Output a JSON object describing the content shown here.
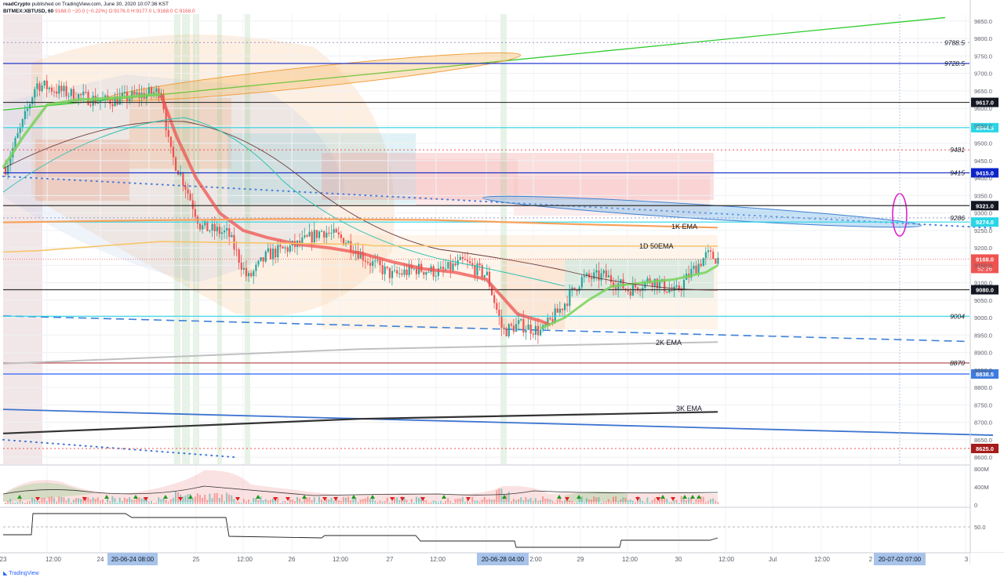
{
  "header": {
    "publisher": "readCrypto",
    "published_info": "published on TradingView.com, June 30, 2020 10:07:36 KST",
    "symbol": "BITMEX:XBTUSD, 60",
    "last": "9168.0",
    "change": "−20.0 (−0.22%)",
    "ohlc": "O:9176.0 H:9177.0 L:9168.0 C:9168.0"
  },
  "watermark": "TradingView",
  "colors": {
    "up": "#26a69a",
    "down": "#ef5350",
    "level_blue": "#0b24c9",
    "level_cyan": "#29d6e6",
    "ema_1k": "#f7a25c",
    "ema_1d50": "#f7c56b",
    "ema_2k": "#c0c0c0",
    "ema_3k": "#333333",
    "highlight_ellipse": "#e020c8"
  },
  "chart_data": {
    "type": "line",
    "title": "",
    "price_axis": {
      "ylim": [
        8580,
        9870
      ],
      "ticks": [
        9850,
        9800,
        9750,
        9700,
        9650,
        9600,
        9550,
        9500,
        9450,
        9400,
        9350,
        9300,
        9250,
        9200,
        9150,
        9100,
        9050,
        9000,
        8950,
        8900,
        8850,
        8800,
        8750,
        8700,
        8650,
        8600
      ],
      "tick_labels": [
        "9850.0",
        "9800.0",
        "9750.0",
        "9700.0",
        "9650.0",
        "9600.0",
        "9550.0",
        "9500.0",
        "9450.0",
        "9400.0",
        "9350.0",
        "9300.0",
        "9250.0",
        "9200.0",
        "9150.0",
        "9100.0",
        "9050.0",
        "9000.0",
        "8950.0",
        "8900.0",
        "8850.0",
        "8800.0",
        "8750.0",
        "8700.0",
        "8650.0",
        "8600.0"
      ]
    },
    "time_axis": {
      "labels": [
        "23",
        "12:00",
        "24",
        "25",
        "12:00",
        "26",
        "12:00",
        "27",
        "12:00",
        "2:00",
        "29",
        "12:00",
        "30",
        "12:00",
        "Jul",
        "12:00",
        "2",
        "3"
      ],
      "highlights": [
        "20-06-24   08:00",
        "20-06-28   04:00",
        "20-07-02   07:00"
      ]
    },
    "levels": [
      {
        "label": "9788.5",
        "value": 9788.5,
        "style": "dotted",
        "color": "#9c9cc9",
        "badge": false
      },
      {
        "label": "9728.5",
        "value": 9728.5,
        "style": "solid",
        "color": "#0b24c9",
        "badge": false
      },
      {
        "label": "9617.0",
        "value": 9617.0,
        "style": "solid",
        "color": "#333333",
        "badge": true,
        "badge_color": "#131722"
      },
      {
        "label": "9544.5",
        "value": 9544.5,
        "style": "solid",
        "color": "#29d6e6",
        "badge": true,
        "badge_color": "#29d6e6"
      },
      {
        "label": "9481",
        "value": 9481,
        "style": "dotted",
        "color": "#ef5350",
        "badge": false
      },
      {
        "label": "9415",
        "value": 9415,
        "style": "solid",
        "color": "#0b24c9",
        "badge": false
      },
      {
        "label": "9415.0",
        "value": 9415,
        "style": "none",
        "color": "#0b24c9",
        "badge": true,
        "badge_color": "#0b24c9"
      },
      {
        "label": "9321.0",
        "value": 9321.0,
        "style": "solid",
        "color": "#333333",
        "badge": true,
        "badge_color": "#131722"
      },
      {
        "label": "9286",
        "value": 9286,
        "style": "dotted",
        "color": "#9c9cc9",
        "badge": false
      },
      {
        "label": "9274.0",
        "value": 9274.0,
        "style": "solid",
        "color": "#29d6e6",
        "badge": true,
        "badge_color": "#29d6e6"
      },
      {
        "label": "9080.0",
        "value": 9080.0,
        "style": "solid",
        "color": "#333333",
        "badge": true,
        "badge_color": "#131722"
      },
      {
        "label": "9004",
        "value": 9004,
        "style": "solid",
        "color": "#29d6e6",
        "badge": false
      },
      {
        "label": "8870",
        "value": 8870,
        "style": "solid",
        "color": "#b04040",
        "badge": false
      },
      {
        "label": "8838.5",
        "value": 8838.5,
        "style": "solid",
        "color": "#2962ff",
        "badge": true,
        "badge_color": "#3d7be0"
      },
      {
        "label": "8625.0",
        "value": 8625.0,
        "style": "dotted",
        "color": "#ef5350",
        "badge": true,
        "badge_color": "#a51c1c"
      }
    ],
    "last_price": {
      "value": 9168.0,
      "label": "9168.0",
      "countdown": "52:26"
    },
    "annotations": [
      "1K EMA",
      "1D 50EMA",
      "2K EMA",
      "3K EMA"
    ],
    "volume_axis": {
      "labels": [
        "800M",
        "400M",
        "0"
      ]
    },
    "indicator_axis": {
      "labels": [
        "50.0"
      ]
    },
    "series": [
      {
        "name": "1K EMA",
        "x": [
          0,
          0.2,
          0.4,
          0.6,
          0.8,
          1
        ],
        "values": [
          9273,
          9279,
          9283,
          9280,
          9268,
          9258
        ]
      },
      {
        "name": "1D 50EMA",
        "x": [
          0,
          0.05,
          0.2,
          0.22,
          0.5,
          0.52,
          1
        ],
        "values": [
          9188,
          9192,
          9215,
          9218,
          9210,
          9206,
          9205
        ]
      },
      {
        "name": "2K EMA",
        "x": [
          0,
          0.5,
          1
        ],
        "values": [
          8868,
          8910,
          8930
        ]
      },
      {
        "name": "3K EMA",
        "x": [
          0,
          0.5,
          1
        ],
        "values": [
          8668,
          8710,
          8730
        ]
      }
    ]
  }
}
